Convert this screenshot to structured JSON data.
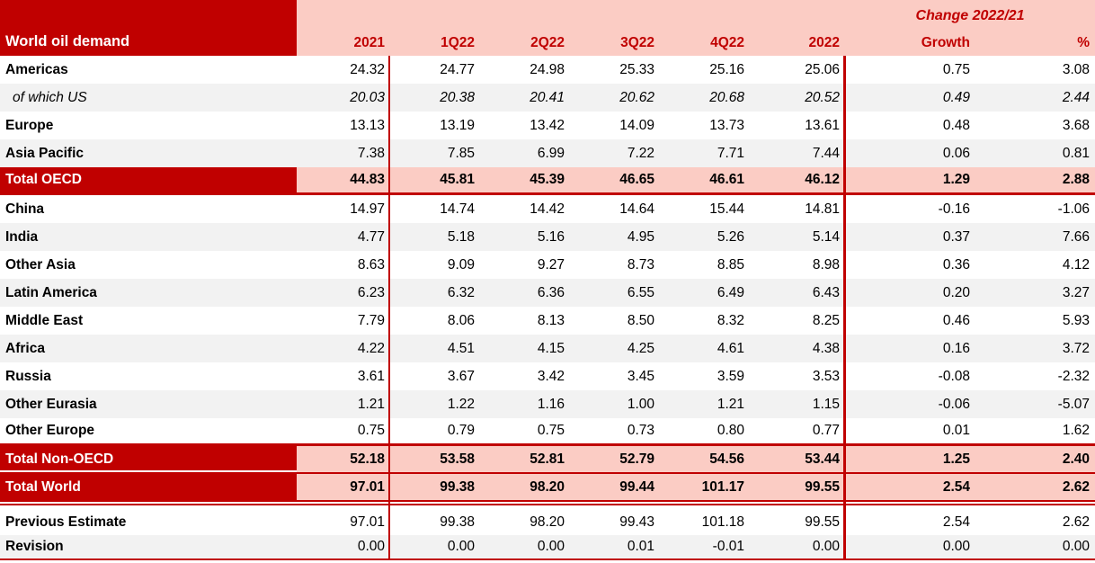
{
  "title": "World oil demand",
  "change_header": "Change 2022/21",
  "columns": [
    "2021",
    "1Q22",
    "2Q22",
    "3Q22",
    "4Q22",
    "2022",
    "Growth",
    "%"
  ],
  "rows": [
    {
      "id": "americas",
      "label": "Americas",
      "shade": "white",
      "values": [
        "24.32",
        "24.77",
        "24.98",
        "25.33",
        "25.16",
        "25.06",
        "0.75",
        "3.08"
      ]
    },
    {
      "id": "of-which-us",
      "label": "of which US",
      "shade": "gray",
      "italic": true,
      "values": [
        "20.03",
        "20.38",
        "20.41",
        "20.62",
        "20.68",
        "20.52",
        "0.49",
        "2.44"
      ]
    },
    {
      "id": "europe",
      "label": "Europe",
      "shade": "white",
      "values": [
        "13.13",
        "13.19",
        "13.42",
        "14.09",
        "13.73",
        "13.61",
        "0.48",
        "3.68"
      ]
    },
    {
      "id": "asia-pacific",
      "label": "Asia Pacific",
      "shade": "gray",
      "values": [
        "7.38",
        "7.85",
        "6.99",
        "7.22",
        "7.71",
        "7.44",
        "0.06",
        "0.81"
      ]
    },
    {
      "id": "total-oecd",
      "label": "Total OECD",
      "total": true,
      "values": [
        "44.83",
        "45.81",
        "45.39",
        "46.65",
        "46.61",
        "46.12",
        "1.29",
        "2.88"
      ]
    },
    {
      "id": "china",
      "label": "China",
      "shade": "white",
      "values": [
        "14.97",
        "14.74",
        "14.42",
        "14.64",
        "15.44",
        "14.81",
        "-0.16",
        "-1.06"
      ]
    },
    {
      "id": "india",
      "label": "India",
      "shade": "gray",
      "values": [
        "4.77",
        "5.18",
        "5.16",
        "4.95",
        "5.26",
        "5.14",
        "0.37",
        "7.66"
      ]
    },
    {
      "id": "other-asia",
      "label": "Other Asia",
      "shade": "white",
      "values": [
        "8.63",
        "9.09",
        "9.27",
        "8.73",
        "8.85",
        "8.98",
        "0.36",
        "4.12"
      ]
    },
    {
      "id": "latin-america",
      "label": "Latin America",
      "shade": "gray",
      "values": [
        "6.23",
        "6.32",
        "6.36",
        "6.55",
        "6.49",
        "6.43",
        "0.20",
        "3.27"
      ]
    },
    {
      "id": "middle-east",
      "label": "Middle East",
      "shade": "white",
      "values": [
        "7.79",
        "8.06",
        "8.13",
        "8.50",
        "8.32",
        "8.25",
        "0.46",
        "5.93"
      ]
    },
    {
      "id": "africa",
      "label": "Africa",
      "shade": "gray",
      "values": [
        "4.22",
        "4.51",
        "4.15",
        "4.25",
        "4.61",
        "4.38",
        "0.16",
        "3.72"
      ]
    },
    {
      "id": "russia",
      "label": "Russia",
      "shade": "white",
      "values": [
        "3.61",
        "3.67",
        "3.42",
        "3.45",
        "3.59",
        "3.53",
        "-0.08",
        "-2.32"
      ]
    },
    {
      "id": "other-eurasia",
      "label": "Other Eurasia",
      "shade": "gray",
      "values": [
        "1.21",
        "1.22",
        "1.16",
        "1.00",
        "1.21",
        "1.15",
        "-0.06",
        "-5.07"
      ]
    },
    {
      "id": "other-europe",
      "label": "Other Europe",
      "shade": "white",
      "values": [
        "0.75",
        "0.79",
        "0.75",
        "0.73",
        "0.80",
        "0.77",
        "0.01",
        "1.62"
      ]
    },
    {
      "id": "total-non-oecd",
      "label": "Total Non-OECD",
      "total": true,
      "values": [
        "52.18",
        "53.58",
        "52.81",
        "52.79",
        "54.56",
        "53.44",
        "1.25",
        "2.40"
      ]
    },
    {
      "id": "total-world",
      "label": "Total World",
      "total": true,
      "double_border_after": true,
      "values": [
        "97.01",
        "99.38",
        "98.20",
        "99.44",
        "101.17",
        "99.55",
        "2.54",
        "2.62"
      ]
    },
    {
      "id": "previous-estimate",
      "label": "Previous Estimate",
      "shade": "white",
      "values": [
        "97.01",
        "99.38",
        "98.20",
        "99.43",
        "101.18",
        "99.55",
        "2.54",
        "2.62"
      ]
    },
    {
      "id": "revision",
      "label": "Revision",
      "shade": "gray",
      "values": [
        "0.00",
        "0.00",
        "0.00",
        "0.01",
        "-0.01",
        "0.00",
        "0.00",
        "0.00"
      ]
    }
  ],
  "colors": {
    "dark_red": "#C00000",
    "pink": "#FBCCC4",
    "row_gray": "#F2F2F2"
  }
}
